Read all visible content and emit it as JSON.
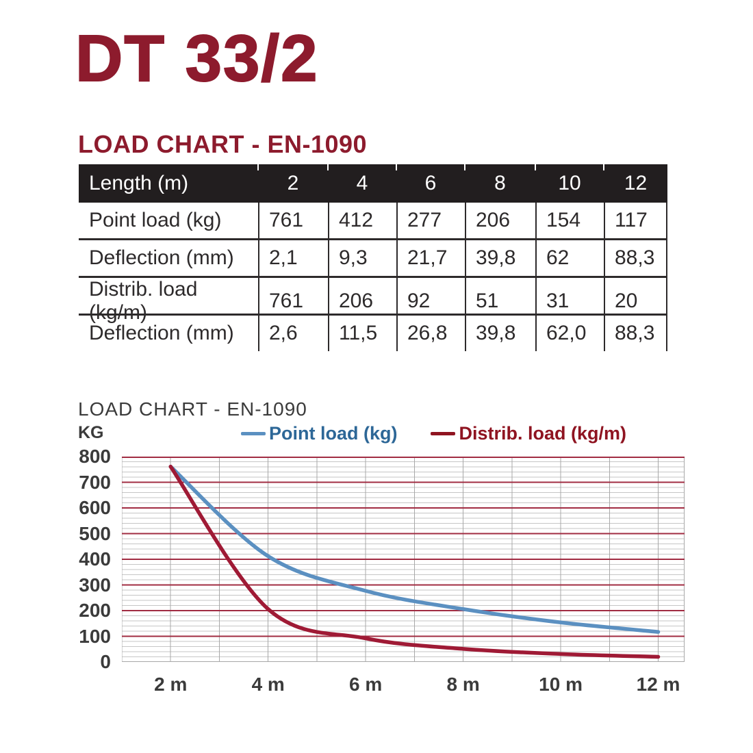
{
  "title": "DT 33/2",
  "section_heading": "LOAD CHART - EN-1090",
  "colors": {
    "maroon": "#8d1b2d",
    "table_header_bg": "#221e1f",
    "table_header_text": "#ffffff",
    "table_text": "#2d2a2b",
    "table_border": "#2d2a2b",
    "chart_text": "#3b3b3b"
  },
  "table": {
    "header": {
      "label": "Length (m)",
      "columns": [
        "2",
        "4",
        "6",
        "8",
        "10",
        "12"
      ]
    },
    "rows": [
      {
        "label": "Point load (kg)",
        "values": [
          "761",
          "412",
          "277",
          "206",
          "154",
          "117"
        ]
      },
      {
        "label": "Deflection (mm)",
        "values": [
          "2,1",
          "9,3",
          "21,7",
          "39,8",
          "62",
          "88,3"
        ]
      },
      {
        "label": "Distrib. load (kg/m)",
        "values": [
          "761",
          "206",
          "92",
          "51",
          "31",
          "20"
        ]
      },
      {
        "label": "Deflection (mm)",
        "values": [
          "2,6",
          "11,5",
          "26,8",
          "39,8",
          "62,0",
          "88,3"
        ]
      }
    ]
  },
  "chart": {
    "title": "LOAD CHART - EN-1090",
    "y_axis_label": "KG"
  },
  "chart_data": {
    "type": "line",
    "title": "LOAD CHART - EN-1090",
    "xlabel": "",
    "ylabel": "KG",
    "x": [
      2,
      4,
      6,
      8,
      10,
      12
    ],
    "x_tick_labels": [
      "2 m",
      "4 m",
      "6 m",
      "8 m",
      "10 m",
      "12 m"
    ],
    "series": [
      {
        "name": "Point load (kg)",
        "values": [
          761,
          412,
          277,
          206,
          154,
          117
        ],
        "color": "#5b90c1",
        "label_color": "#2d6797"
      },
      {
        "name": "Distrib. load (kg/m)",
        "values": [
          761,
          206,
          92,
          51,
          31,
          20
        ],
        "color": "#9f1a35",
        "label_color": "#8f1421"
      }
    ],
    "xlim": [
      1,
      12.54
    ],
    "ylim": [
      0,
      800
    ],
    "y_major_step": 100,
    "y_minor_step": 20,
    "x_grid_step": 1,
    "grid": true,
    "legend_position": "top",
    "grid_colors": {
      "major": "#a12c42",
      "minor": "#c6c6c6",
      "vertical": "#a8a8a8"
    }
  }
}
